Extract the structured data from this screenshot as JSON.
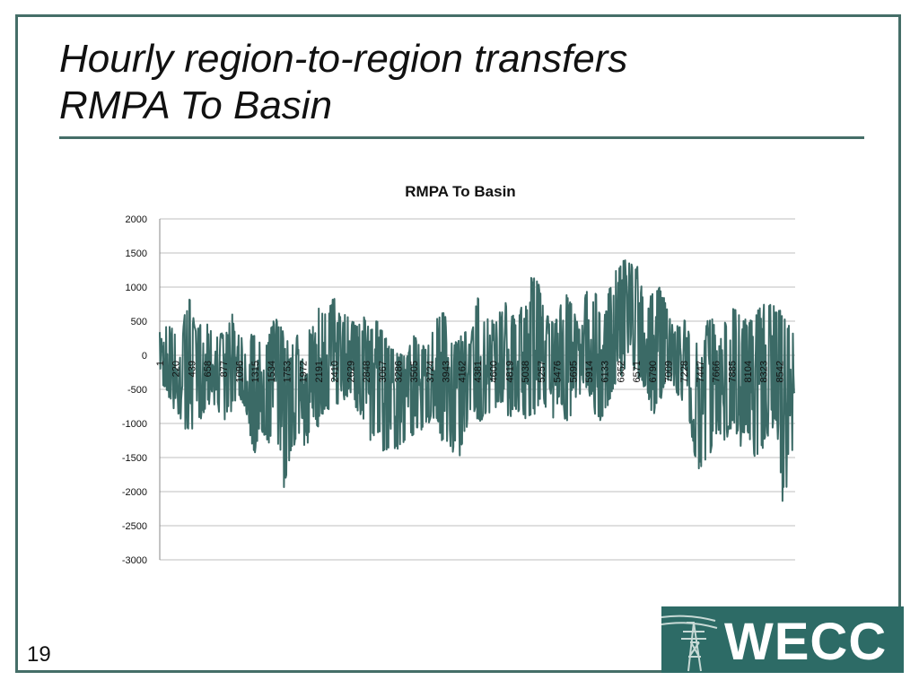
{
  "slide": {
    "title_line1": "Hourly region-to-region transfers",
    "title_line2": "RMPA To Basin",
    "page_number": "19",
    "logo_text": "WECC"
  },
  "colors": {
    "frame": "#456e68",
    "series": "#3b6a66",
    "grid": "#bfbfbf",
    "logo_bg": "#2d6b66"
  },
  "chart_data": {
    "type": "line",
    "title": "RMPA To Basin",
    "xlabel": "",
    "ylabel": "",
    "ylim": [
      -3000,
      2000
    ],
    "yticks": [
      2000,
      1500,
      1000,
      500,
      0,
      -500,
      -1000,
      -1500,
      -2000,
      -2500,
      -3000
    ],
    "xlim": [
      1,
      8760
    ],
    "xticks": [
      1,
      220,
      439,
      658,
      877,
      1096,
      1315,
      1534,
      1753,
      1972,
      2191,
      2410,
      2629,
      2848,
      3067,
      3286,
      3505,
      3724,
      3943,
      4162,
      4381,
      4600,
      4819,
      5038,
      5257,
      5476,
      5695,
      5914,
      6133,
      6352,
      6571,
      6790,
      7009,
      7228,
      7447,
      7666,
      7885,
      8104,
      8323,
      8542
    ],
    "grid": true,
    "legend": "none",
    "series": [
      {
        "x": [
          1,
          101,
          201,
          301,
          401,
          501,
          601,
          701,
          801,
          901,
          1001,
          1101,
          1201,
          1301,
          1401,
          1501,
          1601,
          1701,
          1801,
          1901,
          2001,
          2101,
          2201,
          2301,
          2401,
          2501,
          2601,
          2701,
          2801,
          2901,
          3001,
          3101,
          3201,
          3301,
          3401,
          3501,
          3601,
          3701,
          3801,
          3901,
          4001,
          4101,
          4201,
          4301,
          4401,
          4501,
          4601,
          4701,
          4801,
          4901,
          5001,
          5101,
          5201,
          5301,
          5401,
          5501,
          5601,
          5701,
          5801,
          5901,
          6001,
          6101,
          6201,
          6301,
          6401,
          6501,
          6601,
          6701,
          6801,
          6901,
          7001,
          7101,
          7201,
          7301,
          7401,
          7501,
          7601,
          7701,
          7801,
          7901,
          8001,
          8101,
          8201,
          8301,
          8401,
          8501,
          8601,
          8701,
          8760
        ],
        "max": [
          450,
          480,
          400,
          380,
          880,
          450,
          580,
          420,
          350,
          300,
          600,
          400,
          350,
          300,
          250,
          300,
          600,
          350,
          150,
          300,
          330,
          400,
          750,
          600,
          900,
          550,
          640,
          450,
          600,
          400,
          560,
          300,
          100,
          80,
          0,
          300,
          150,
          200,
          500,
          730,
          300,
          200,
          400,
          380,
          980,
          600,
          550,
          700,
          850,
          500,
          850,
          1150,
          1200,
          700,
          500,
          650,
          950,
          680,
          350,
          1130,
          1000,
          500,
          1000,
          1300,
          1430,
          1440,
          1300,
          600,
          1000,
          1030,
          700,
          450,
          500,
          600,
          250,
          350,
          650,
          200,
          550,
          700,
          650,
          500,
          550,
          880,
          800,
          700,
          650,
          350,
          500
        ],
        "min": [
          -350,
          -600,
          -800,
          -1000,
          -1200,
          -1000,
          -900,
          -700,
          -800,
          -1000,
          -800,
          -700,
          -900,
          -1500,
          -1100,
          -1300,
          -1000,
          -2000,
          -1500,
          -1200,
          -1400,
          -1300,
          -1000,
          -800,
          -900,
          -700,
          -600,
          -800,
          -900,
          -1300,
          -1100,
          -1500,
          -1350,
          -1400,
          -1300,
          -1200,
          -1100,
          -1000,
          -900,
          -1300,
          -1400,
          -1650,
          -1200,
          -800,
          -1000,
          -900,
          -800,
          -700,
          -1000,
          -800,
          -900,
          -1000,
          -800,
          -700,
          -1000,
          -700,
          -1000,
          -900,
          -800,
          -500,
          -900,
          -1000,
          -700,
          -400,
          -300,
          -200,
          -400,
          -500,
          -900,
          -700,
          -400,
          -500,
          -700,
          -1000,
          -1700,
          -1760,
          -1400,
          -1200,
          -1300,
          -1000,
          -1400,
          -1100,
          -1500,
          -1400,
          -1200,
          -1000,
          -2380,
          -1300,
          -1650
        ]
      }
    ]
  }
}
